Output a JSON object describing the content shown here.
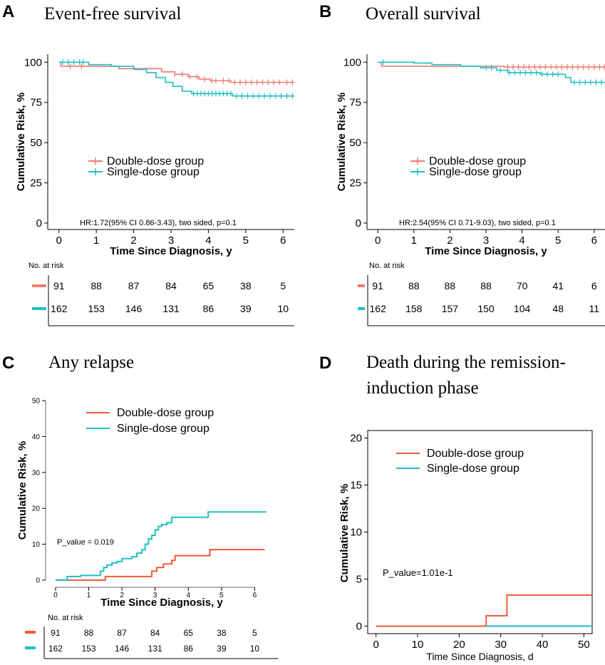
{
  "colors": {
    "double": "#F07B70",
    "single": "#1FBFC4",
    "double_c": "#F15A3A",
    "single_c": "#22B8D4"
  },
  "chart_data": [
    {
      "panel": "A",
      "title": "Event-free survival",
      "type": "line",
      "xlabel": "Time Since Diagnosis, y",
      "ylabel": "Cumulative Risk, %",
      "xlim": [
        -0.3,
        6.3
      ],
      "ylim": [
        -4,
        105
      ],
      "xticks": [
        "0",
        "1",
        "2",
        "3",
        "4",
        "5",
        "6"
      ],
      "yticks": [
        "0",
        "25",
        "50",
        "75",
        "100"
      ],
      "legend": [
        "Double-dose group",
        "Single-dose group"
      ],
      "annotation": "HR:1.72(95% CI 0.86-3.43), two sided, p=0.1",
      "series": [
        {
          "name": "Double-dose group",
          "color": "#F07B70",
          "x": [
            0,
            0.05,
            0.9,
            1.6,
            2.5,
            2.75,
            3.1,
            3.45,
            3.75,
            4.05,
            4.6,
            6.3
          ],
          "y": [
            100,
            97.5,
            97.5,
            96,
            96,
            94,
            92.5,
            91,
            89.5,
            88.5,
            87.5,
            87.5
          ],
          "censor_x": [
            0.3,
            0.6,
            3.1,
            3.3,
            3.5,
            3.7,
            3.9,
            4.1,
            4.2,
            4.4,
            4.55,
            4.7,
            4.85,
            5.0,
            5.15,
            5.3,
            5.45,
            5.6,
            5.75,
            5.9,
            6.1,
            6.25
          ]
        },
        {
          "name": "Single-dose group",
          "color": "#1FBFC4",
          "x": [
            0,
            0.8,
            1.4,
            2.0,
            2.35,
            2.6,
            2.85,
            3.05,
            3.3,
            3.55,
            4.65,
            6.3
          ],
          "y": [
            100,
            98.5,
            97.5,
            95.5,
            93.5,
            90.5,
            87.5,
            85,
            82,
            80.5,
            79,
            79
          ],
          "censor_x": [
            0.1,
            0.25,
            0.4,
            0.55,
            0.65,
            3.6,
            3.7,
            3.8,
            3.9,
            4.0,
            4.1,
            4.2,
            4.3,
            4.4,
            4.5,
            4.6,
            4.75,
            4.9,
            5.05,
            5.2,
            5.35,
            5.5,
            5.65,
            5.8,
            5.95,
            6.1,
            6.25
          ]
        }
      ],
      "risk_table": {
        "header": "No. at risk",
        "rows": [
          {
            "group": "Double-dose group",
            "values": [
              "91",
              "88",
              "87",
              "84",
              "65",
              "38",
              "5"
            ]
          },
          {
            "group": "Single-dose group",
            "values": [
              "162",
              "153",
              "146",
              "131",
              "86",
              "39",
              "10"
            ]
          }
        ]
      }
    },
    {
      "panel": "B",
      "title": "Overall survival",
      "type": "line",
      "xlabel": "Time Since Diagnosis, y",
      "ylabel": "Cumulative Risk, %",
      "xlim": [
        -0.3,
        6.3
      ],
      "ylim": [
        -4,
        105
      ],
      "xticks": [
        "0",
        "1",
        "2",
        "3",
        "4",
        "5",
        "6"
      ],
      "yticks": [
        "0",
        "25",
        "50",
        "75",
        "100"
      ],
      "legend": [
        "Double-dose group",
        "Single-dose group"
      ],
      "annotation": "HR:2.54(95% CI 0.71-9.03), two sided, p=0.1",
      "series": [
        {
          "name": "Double-dose group",
          "color": "#F07B70",
          "x": [
            0,
            0.1,
            2.2,
            3.5,
            6.3
          ],
          "y": [
            100,
            97.5,
            97.5,
            97,
            97
          ],
          "censor_x": [
            3.6,
            3.75,
            3.9,
            4.05,
            4.2,
            4.35,
            4.5,
            4.65,
            4.8,
            4.95,
            5.1,
            5.25,
            5.4,
            5.55,
            5.7,
            5.85,
            6.0,
            6.15,
            6.28
          ]
        },
        {
          "name": "Single-dose group",
          "color": "#1FBFC4",
          "x": [
            0,
            1.0,
            1.5,
            2.3,
            2.85,
            3.3,
            3.6,
            4.5,
            5.2,
            5.35,
            6.3
          ],
          "y": [
            100,
            99.5,
            98.5,
            97.5,
            96.5,
            95,
            93.5,
            92.5,
            90.5,
            87.5,
            87.5
          ],
          "censor_x": [
            0.15,
            3.0,
            3.15,
            3.4,
            3.65,
            3.8,
            3.95,
            4.1,
            4.25,
            4.4,
            4.55,
            4.7,
            4.85,
            5.0,
            5.45,
            5.6,
            5.75,
            5.9,
            6.05,
            6.2
          ]
        }
      ],
      "risk_table": {
        "header": "No. at risk",
        "rows": [
          {
            "group": "Double-dose group",
            "values": [
              "91",
              "88",
              "88",
              "88",
              "70",
              "41",
              "6"
            ]
          },
          {
            "group": "Single-dose group",
            "values": [
              "162",
              "158",
              "157",
              "150",
              "104",
              "48",
              "11"
            ]
          }
        ]
      }
    },
    {
      "panel": "C",
      "title": "Any relapse",
      "type": "line",
      "xlabel": "Time Since Diagnosis, y",
      "ylabel": "Cumulative Risk, %",
      "xlim": [
        -0.3,
        6.7
      ],
      "ylim": [
        -2,
        52
      ],
      "xticks": [
        "0",
        "1",
        "2",
        "3",
        "4",
        "5",
        "6"
      ],
      "yticks": [
        "0",
        "10",
        "20",
        "30",
        "40",
        "50"
      ],
      "legend": [
        "Double-dose group",
        "Single-dose group"
      ],
      "annotation": "P_value = 0.019",
      "series": [
        {
          "name": "Double-dose group",
          "color": "#F15A3A",
          "x": [
            0,
            1.5,
            2.8,
            2.9,
            3.05,
            3.25,
            3.5,
            3.6,
            4.65,
            6.3
          ],
          "y": [
            0,
            1,
            1,
            2.5,
            3.5,
            4.5,
            5.5,
            6.8,
            8.5,
            8.5
          ]
        },
        {
          "name": "Single-dose group",
          "color": "#1FBFC4",
          "x": [
            0,
            0.35,
            0.75,
            1.35,
            1.45,
            1.55,
            1.7,
            1.85,
            2.0,
            2.3,
            2.45,
            2.6,
            2.7,
            2.8,
            2.9,
            3.0,
            3.1,
            3.2,
            3.35,
            3.5,
            4.6,
            6.35
          ],
          "y": [
            0,
            1,
            1.3,
            2.5,
            3.5,
            4.2,
            4.8,
            5.2,
            6,
            6.5,
            7.5,
            8.5,
            10,
            11.5,
            12.5,
            14,
            15,
            15.5,
            16,
            17.5,
            19,
            19
          ]
        }
      ],
      "risk_table": {
        "header": "No. at risk",
        "rows": [
          {
            "group": "Double-dose group",
            "values": [
              "91",
              "88",
              "87",
              "84",
              "65",
              "38",
              "5"
            ]
          },
          {
            "group": "Single-dose group",
            "values": [
              "162",
              "153",
              "146",
              "131",
              "86",
              "39",
              "10"
            ]
          }
        ]
      }
    },
    {
      "panel": "D",
      "title_lines": [
        "Death during the remission-",
        "induction phase"
      ],
      "type": "line",
      "xlabel": "Time Since Diagnosis, d",
      "ylabel": "Cumulative Risk, %",
      "xlim": [
        -2,
        52
      ],
      "ylim": [
        -0.8,
        20.8
      ],
      "xticks": [
        "0",
        "10",
        "20",
        "30",
        "40",
        "50"
      ],
      "yticks": [
        "0",
        "5",
        "10",
        "15",
        "20"
      ],
      "legend": [
        "Double-dose group",
        "Single-dose group"
      ],
      "annotation": "P_value=1.01e-1",
      "series": [
        {
          "name": "Double-dose group",
          "color": "#F15A3A",
          "x": [
            0,
            26.5,
            31.5,
            52
          ],
          "y": [
            0,
            1.1,
            3.3,
            3.3
          ]
        },
        {
          "name": "Single-dose group",
          "color": "#22B8D4",
          "x": [
            26.5,
            52
          ],
          "y": [
            0,
            0
          ]
        }
      ]
    }
  ]
}
